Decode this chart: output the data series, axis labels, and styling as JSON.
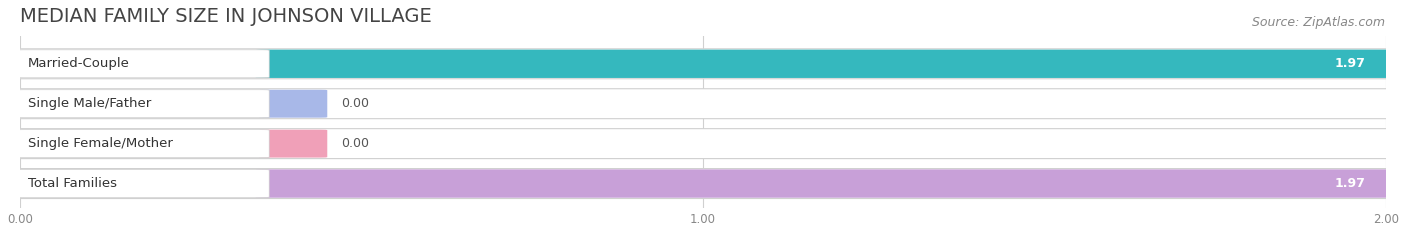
{
  "title": "MEDIAN FAMILY SIZE IN JOHNSON VILLAGE",
  "source": "Source: ZipAtlas.com",
  "categories": [
    "Married-Couple",
    "Single Male/Father",
    "Single Female/Mother",
    "Total Families"
  ],
  "values": [
    1.97,
    0.0,
    0.0,
    1.97
  ],
  "bar_colors": [
    "#35b8be",
    "#a8b8e8",
    "#f0a0b8",
    "#c8a0d8"
  ],
  "background_color": "#ffffff",
  "xlim": [
    0,
    2.0
  ],
  "xticks": [
    0.0,
    1.0,
    2.0
  ],
  "xtick_labels": [
    "0.00",
    "1.00",
    "2.00"
  ],
  "value_labels": [
    "1.97",
    "0.00",
    "0.00",
    "1.97"
  ],
  "title_fontsize": 14,
  "source_fontsize": 9,
  "label_fontsize": 9.5,
  "value_fontsize": 9
}
